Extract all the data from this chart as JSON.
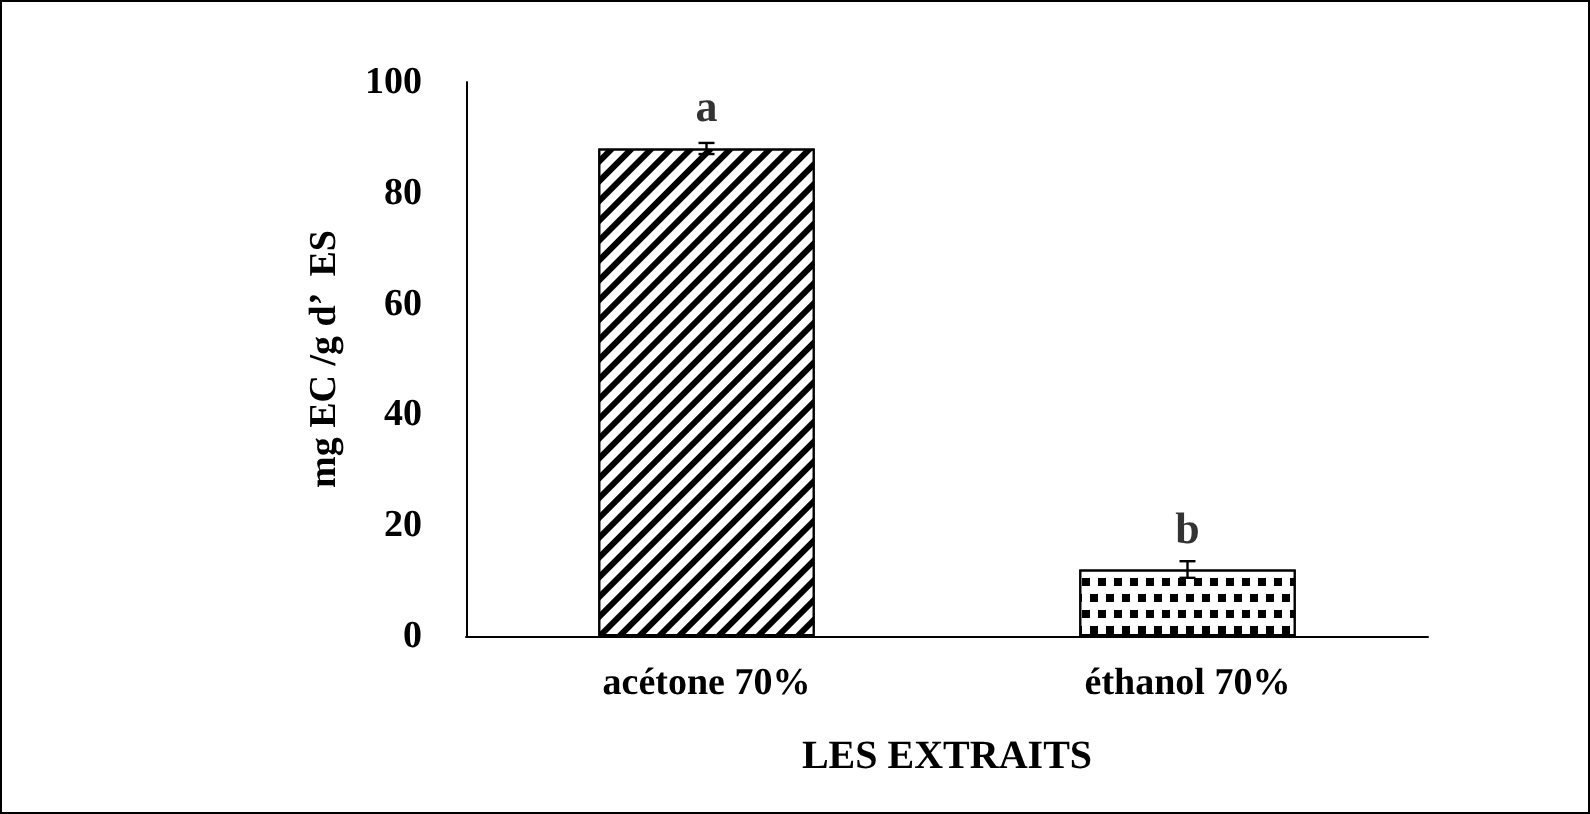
{
  "chart_data": {
    "type": "bar",
    "xlabel": "LES EXTRAITS",
    "ylabel": "mg EC /g d’  ES",
    "categories": [
      "acétone 70%",
      "éthanol 70%"
    ],
    "values": [
      88,
      12
    ],
    "errors": [
      1,
      1.5
    ],
    "colors": [
      "#000000",
      "#000000"
    ],
    "ylim": [
      0,
      100
    ],
    "yticks": [
      0,
      20,
      40,
      60,
      80,
      100
    ],
    "grid": false,
    "annotations": [
      {
        "text": "a",
        "x": "acétone 70%",
        "y": 88
      },
      {
        "text": "b",
        "x": "éthanol 70%",
        "y": 12
      }
    ]
  }
}
